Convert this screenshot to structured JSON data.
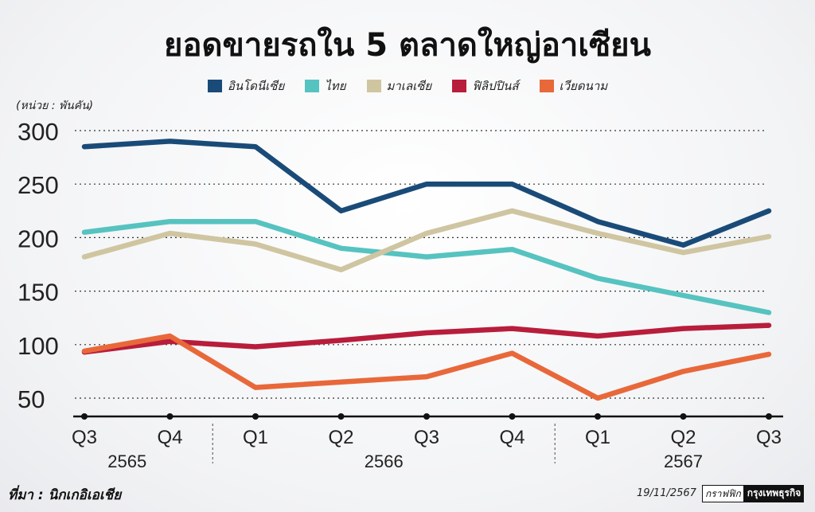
{
  "chart_data": {
    "type": "line",
    "title": "ยอดขายรถใน 5 ตลาดใหญ่อาเซียน",
    "unit_label": "(หน่วย : พันคัน)",
    "categories": [
      "Q3",
      "Q4",
      "Q1",
      "Q2",
      "Q3",
      "Q4",
      "Q1",
      "Q2",
      "Q3"
    ],
    "year_groups": [
      {
        "label": "2565",
        "start": 0,
        "end": 1
      },
      {
        "label": "2566",
        "start": 2,
        "end": 5
      },
      {
        "label": "2567",
        "start": 6,
        "end": 8
      }
    ],
    "ylim": [
      38,
      305
    ],
    "yticks": [
      300,
      250,
      200,
      150,
      100,
      50
    ],
    "grid": "horizontal-dotted",
    "legend_position": "top-center",
    "series": [
      {
        "name": "อินโดนีเซีย",
        "color": "#1a4b78",
        "values": [
          285,
          290,
          285,
          225,
          250,
          250,
          215,
          193,
          225
        ]
      },
      {
        "name": "ไทย",
        "color": "#56c3c0",
        "values": [
          205,
          215,
          215,
          190,
          182,
          189,
          162,
          146,
          130
        ]
      },
      {
        "name": "มาเลเซีย",
        "color": "#cfc5a1",
        "values": [
          182,
          204,
          194,
          170,
          204,
          225,
          204,
          186,
          201
        ]
      },
      {
        "name": "ฟิลิปปินส์",
        "color": "#b81d3b",
        "values": [
          93,
          103,
          98,
          104,
          111,
          115,
          108,
          115,
          118
        ]
      },
      {
        "name": "เวียดนาม",
        "color": "#e8683a",
        "values": [
          94,
          108,
          60,
          65,
          70,
          92,
          50,
          75,
          91
        ]
      }
    ]
  },
  "footer": {
    "source": "ที่มา : นิกเกอิเอเชีย",
    "date": "19/11/2567",
    "brand_a": "กราฟฟิก",
    "brand_b": "กรุงเทพธุรกิจ"
  }
}
